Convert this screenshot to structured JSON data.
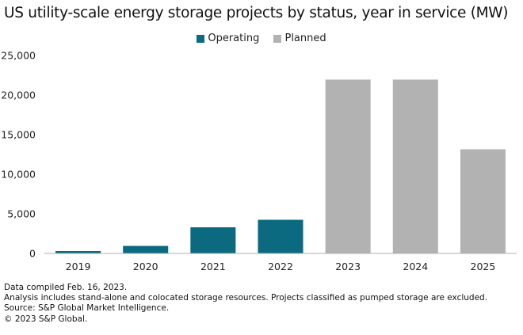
{
  "chart_data": {
    "type": "bar",
    "title": "US utility-scale energy storage projects by status, year in service (MW)",
    "categories": [
      "2019",
      "2020",
      "2021",
      "2022",
      "2023",
      "2024",
      "2025"
    ],
    "series": [
      {
        "name": "Operating",
        "color": "#0b6a80",
        "values": [
          300,
          950,
          3300,
          4250,
          null,
          null,
          null
        ]
      },
      {
        "name": "Planned",
        "color": "#b2b2b2",
        "values": [
          null,
          null,
          null,
          null,
          21950,
          21950,
          13150
        ]
      }
    ],
    "ylim": [
      0,
      25000
    ],
    "yticks": [
      "0",
      "5,000",
      "10,000",
      "15,000",
      "20,000",
      "25,000"
    ],
    "ytick_values": [
      0,
      5000,
      10000,
      15000,
      20000,
      25000
    ],
    "xlabel": "",
    "ylabel": "",
    "legend_position": "top-center",
    "grid": false
  },
  "footer": {
    "line1": "Data compiled Feb. 16, 2023.",
    "line2": "Analysis includes stand-alone and colocated storage resources. Projects classified as pumped storage are excluded.",
    "line3": "Source: S&P Global Market Intelligence.",
    "line4": "© 2023 S&P Global."
  }
}
